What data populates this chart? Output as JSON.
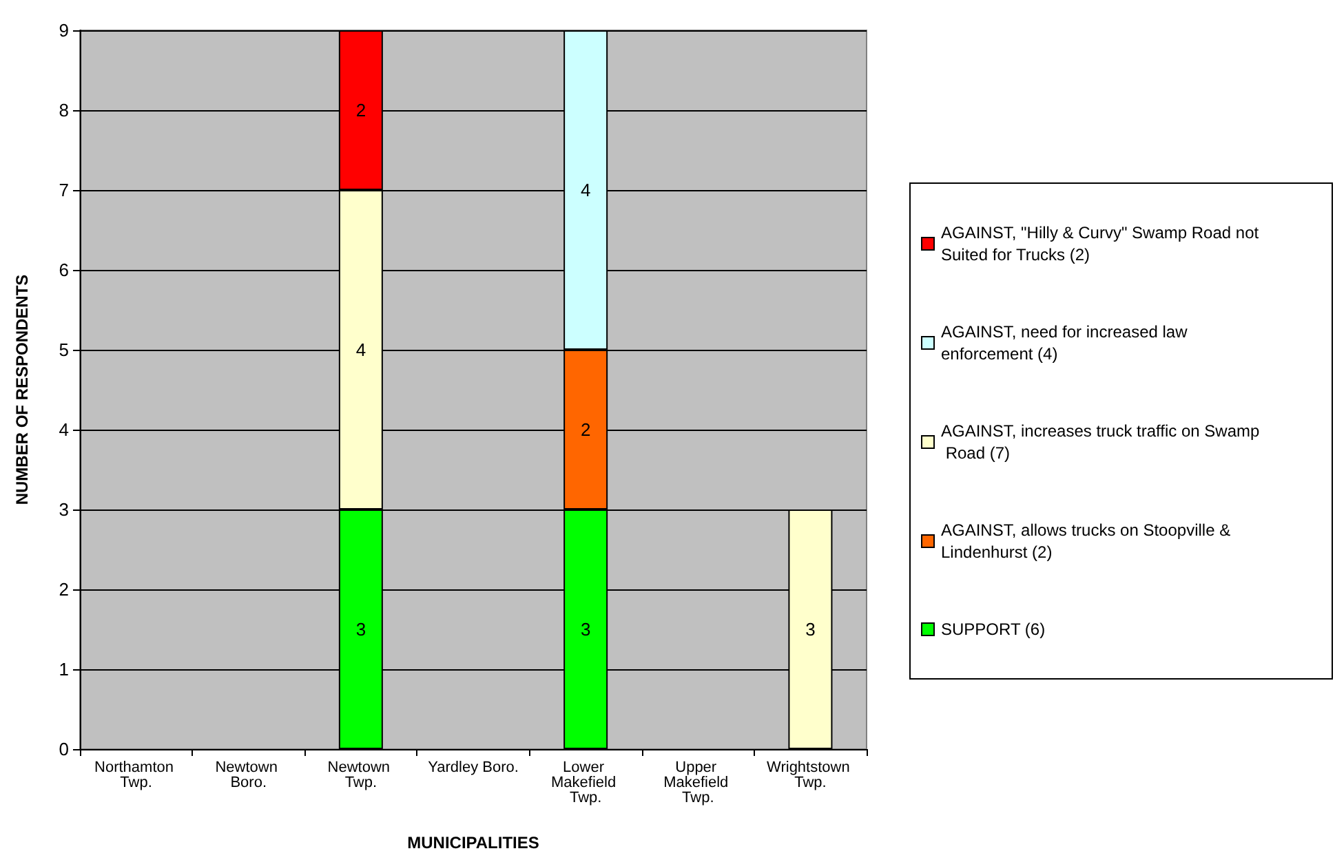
{
  "chart_data": {
    "type": "bar",
    "xlabel": "MUNICIPALITIES",
    "ylabel": "NUMBER OF RESPONDENTS",
    "categories": [
      "Northamton Twp.",
      "Newtown Boro.",
      "Newtown Twp.",
      "Yardley Boro.",
      "Lower Makefield Twp.",
      "Upper Makefield Twp.",
      "Wrightstown Twp."
    ],
    "series": [
      {
        "name": "SUPPORT (6)",
        "color": "#00ff00",
        "values": [
          null,
          null,
          3,
          null,
          3,
          null,
          null
        ]
      },
      {
        "name": "AGAINST, allows trucks on Stoopville & Lindenhurst (2)",
        "color": "#ff6600",
        "values": [
          null,
          null,
          null,
          null,
          2,
          null,
          null
        ]
      },
      {
        "name": "AGAINST, increases truck traffic on Swamp Road (7)",
        "color": "#ffffcc",
        "values": [
          null,
          null,
          4,
          null,
          null,
          null,
          3
        ]
      },
      {
        "name": "AGAINST, need for increased law enforcement (4)",
        "color": "#ccffff",
        "values": [
          null,
          null,
          null,
          null,
          4,
          null,
          null
        ]
      },
      {
        "name": "AGAINST, \"Hilly & Curvy\" Swamp Road not Suited for Trucks (2)",
        "color": "#ff0000",
        "values": [
          null,
          null,
          2,
          null,
          null,
          null,
          null
        ]
      }
    ],
    "stacked": true,
    "ylim": [
      0,
      9
    ],
    "yticks": [
      0,
      1,
      2,
      3,
      4,
      5,
      6,
      7,
      8,
      9
    ],
    "grid": "y",
    "legend": "right",
    "data_labels": true
  }
}
